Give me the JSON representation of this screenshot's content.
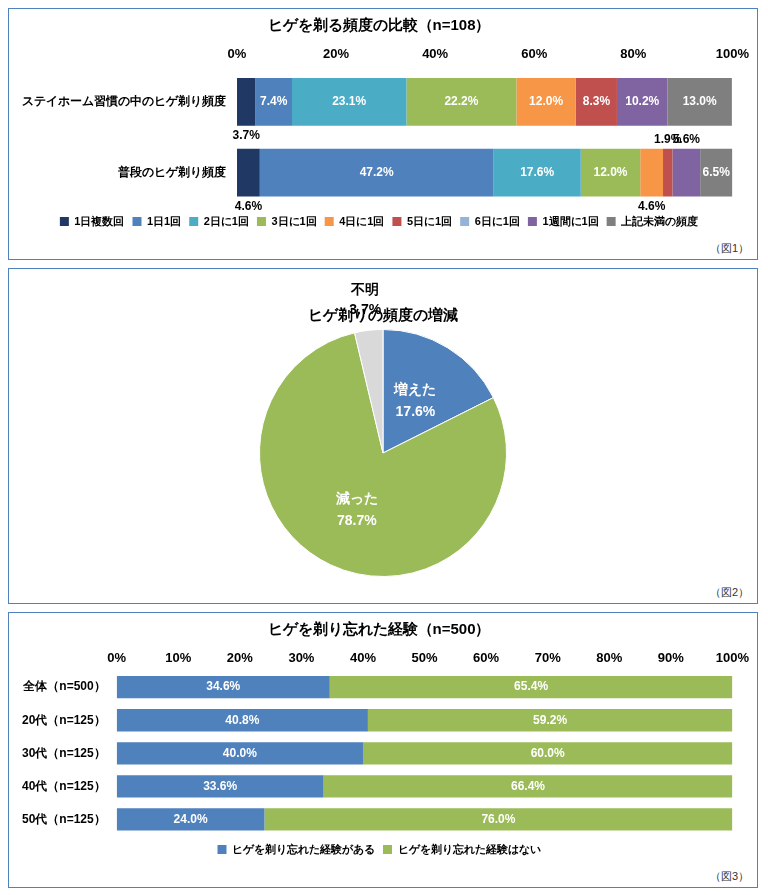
{
  "chart_data": [
    {
      "type": "bar",
      "orientation": "horizontal",
      "stacked": true,
      "data_labels": true,
      "grid": false,
      "legend": "bottom",
      "title": "ヒゲを剃る頻度の比較（n=108）",
      "caption": "（図1）",
      "categories": [
        "ステイホーム習慣の中のヒゲ剃り頻度",
        "普段のヒゲ剃り頻度"
      ],
      "xlim": [
        0,
        100
      ],
      "xticks": [
        {
          "value": 0,
          "label": "0%"
        },
        {
          "value": 20,
          "label": "20%"
        },
        {
          "value": 40,
          "label": "40%"
        },
        {
          "value": 60,
          "label": "60%"
        },
        {
          "value": 80,
          "label": "80%"
        },
        {
          "value": 100,
          "label": "100%"
        }
      ],
      "series": [
        {
          "name": "1日複数回",
          "color": "#1f3864",
          "values": [
            3.7,
            4.6
          ],
          "value_labels": [
            "3.7%",
            "4.6%"
          ]
        },
        {
          "name": "1日1回",
          "color": "#4f81bd",
          "values": [
            7.4,
            47.2
          ],
          "value_labels": [
            "7.4%",
            "47.2%"
          ]
        },
        {
          "name": "2日に1回",
          "color": "#4bacc6",
          "values": [
            23.1,
            17.6
          ],
          "value_labels": [
            "23.1%",
            "17.6%"
          ]
        },
        {
          "name": "3日に1回",
          "color": "#9bbb59",
          "values": [
            22.2,
            12.0
          ],
          "value_labels": [
            "22.2%",
            "12.0%"
          ]
        },
        {
          "name": "4日に1回",
          "color": "#f79646",
          "values": [
            12.0,
            4.6
          ],
          "value_labels": [
            "12.0%",
            "4.6%"
          ]
        },
        {
          "name": "5日に1回",
          "color": "#c0504d",
          "values": [
            8.3,
            1.9
          ],
          "value_labels": [
            "8.3%",
            "1.9%"
          ]
        },
        {
          "name": "6日に1回",
          "color": "#95b3d7",
          "values": [
            0,
            0
          ],
          "value_labels": [
            null,
            null
          ]
        },
        {
          "name": "1週間に1回",
          "color": "#8064a2",
          "values": [
            10.2,
            5.6
          ],
          "value_labels": [
            "10.2%",
            "5.6%"
          ]
        },
        {
          "name": "上記未満の頻度",
          "color": "#7f7f7f",
          "values": [
            13.0,
            6.5
          ],
          "value_labels": [
            "13.0%",
            "6.5%"
          ]
        }
      ]
    },
    {
      "type": "pie",
      "data_labels": true,
      "title": "ヒゲ剃りの頻度の増減",
      "caption": "（図2）",
      "categories": [
        "増えた",
        "減った",
        "不明"
      ],
      "values": [
        17.6,
        78.7,
        3.7
      ],
      "value_labels": [
        "17.6%",
        "78.7%",
        "3.7%"
      ],
      "colors": [
        "#4f81bd",
        "#9bbb59",
        "#d9d9d9"
      ]
    },
    {
      "type": "bar",
      "orientation": "horizontal",
      "stacked": true,
      "data_labels": true,
      "grid": false,
      "legend": "bottom",
      "title": "ヒゲを剃り忘れた経験（n=500）",
      "caption": "（図3）",
      "categories": [
        "全体（n=500）",
        "20代（n=125）",
        "30代（n=125）",
        "40代（n=125）",
        "50代（n=125）"
      ],
      "xlim": [
        0,
        100
      ],
      "xticks": [
        {
          "value": 0,
          "label": "0%"
        },
        {
          "value": 10,
          "label": "10%"
        },
        {
          "value": 20,
          "label": "20%"
        },
        {
          "value": 30,
          "label": "30%"
        },
        {
          "value": 40,
          "label": "40%"
        },
        {
          "value": 50,
          "label": "50%"
        },
        {
          "value": 60,
          "label": "60%"
        },
        {
          "value": 70,
          "label": "70%"
        },
        {
          "value": 80,
          "label": "80%"
        },
        {
          "value": 90,
          "label": "90%"
        },
        {
          "value": 100,
          "label": "100%"
        }
      ],
      "series": [
        {
          "name": "ヒゲを剃り忘れた経験がある",
          "color": "#4f81bd",
          "values": [
            34.6,
            40.8,
            40.0,
            33.6,
            24.0
          ],
          "value_labels": [
            "34.6%",
            "40.8%",
            "40.0%",
            "33.6%",
            "24.0%"
          ]
        },
        {
          "name": "ヒゲを剃り忘れた経験はない",
          "color": "#9bbb59",
          "values": [
            65.4,
            59.2,
            60.0,
            66.4,
            76.0
          ],
          "value_labels": [
            "65.4%",
            "59.2%",
            "60.0%",
            "66.4%",
            "76.0%"
          ]
        }
      ]
    }
  ]
}
